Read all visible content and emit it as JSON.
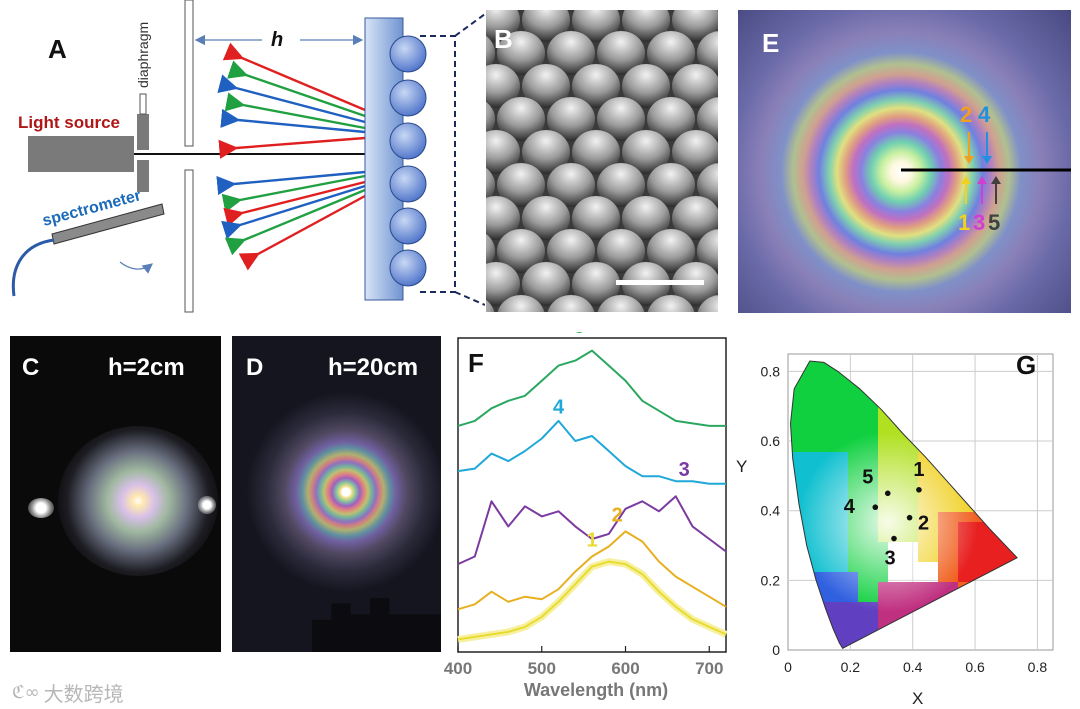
{
  "panel_a": {
    "letter": "A",
    "diaphragm": "diaphragm",
    "light_source": "Light source",
    "spectrometer": "spectrometer",
    "h": "h"
  },
  "panel_b": {
    "letter": "B"
  },
  "panel_c": {
    "letter": "C",
    "caption": "h=2cm"
  },
  "panel_d": {
    "letter": "D",
    "caption": "h=20cm"
  },
  "panel_e": {
    "letter": "E",
    "top_markers": [
      "2",
      "4"
    ],
    "bottom_markers": [
      "1",
      "3",
      "5"
    ],
    "marker_colors": {
      "1": "#f0d020",
      "2": "#f0a020",
      "3": "#d040d0",
      "4": "#2090e0",
      "5": "#404040"
    }
  },
  "panel_f": {
    "letter": "F"
  },
  "panel_g": {
    "letter": "G"
  },
  "watermark": "大数跨境",
  "chart_data": [
    {
      "type": "line",
      "panel": "F",
      "xlabel": "Wavelength (nm)",
      "xlim": [
        400,
        720
      ],
      "xticks": [
        "400",
        "500",
        "600",
        "700"
      ],
      "ylabel": "",
      "yticks": [],
      "series": [
        {
          "name": "1",
          "color": "#e8dc30",
          "x": [
            400,
            420,
            440,
            460,
            480,
            500,
            520,
            540,
            560,
            580,
            600,
            620,
            640,
            660,
            680,
            700,
            720
          ],
          "y": [
            0.05,
            0.06,
            0.07,
            0.08,
            0.1,
            0.14,
            0.2,
            0.27,
            0.34,
            0.36,
            0.35,
            0.31,
            0.24,
            0.18,
            0.13,
            0.1,
            0.07
          ]
        },
        {
          "name": "2",
          "color": "#e8b020",
          "x": [
            400,
            420,
            440,
            460,
            480,
            500,
            520,
            540,
            560,
            580,
            600,
            620,
            640,
            660,
            680,
            700,
            720
          ],
          "y": [
            0.17,
            0.19,
            0.24,
            0.2,
            0.22,
            0.21,
            0.25,
            0.32,
            0.38,
            0.42,
            0.48,
            0.44,
            0.36,
            0.3,
            0.26,
            0.22,
            0.18
          ]
        },
        {
          "name": "3",
          "color": "#7b3aa0",
          "x": [
            400,
            420,
            440,
            460,
            480,
            500,
            520,
            540,
            560,
            580,
            600,
            620,
            640,
            660,
            680,
            700,
            720
          ],
          "y": [
            0.35,
            0.38,
            0.6,
            0.5,
            0.58,
            0.54,
            0.56,
            0.5,
            0.45,
            0.47,
            0.57,
            0.6,
            0.56,
            0.62,
            0.5,
            0.45,
            0.4
          ]
        },
        {
          "name": "4",
          "color": "#20a8d8",
          "x": [
            400,
            420,
            440,
            460,
            480,
            500,
            520,
            540,
            560,
            580,
            600,
            620,
            640,
            660,
            680,
            700,
            720
          ],
          "y": [
            0.72,
            0.73,
            0.79,
            0.76,
            0.8,
            0.85,
            0.92,
            0.84,
            0.86,
            0.8,
            0.74,
            0.7,
            0.7,
            0.68,
            0.68,
            0.67,
            0.67
          ]
        },
        {
          "name": "5",
          "color": "#2aa860",
          "x": [
            400,
            420,
            440,
            460,
            480,
            500,
            520,
            540,
            560,
            580,
            600,
            620,
            640,
            660,
            680,
            700,
            720
          ],
          "y": [
            0.9,
            0.92,
            0.97,
            1.0,
            1.02,
            1.08,
            1.14,
            1.16,
            1.2,
            1.14,
            1.08,
            1.0,
            0.96,
            0.92,
            0.91,
            0.9,
            0.9
          ]
        }
      ]
    },
    {
      "type": "scatter",
      "panel": "G",
      "xlabel": "X",
      "ylabel": "Y",
      "xlim": [
        0,
        0.85
      ],
      "ylim": [
        0,
        0.85
      ],
      "xticks": [
        "0",
        "0.2",
        "0.4",
        "0.6",
        "0.8"
      ],
      "yticks": [
        "0",
        "0.2",
        "0.4",
        "0.6",
        "0.8"
      ],
      "points": [
        {
          "label": "1",
          "x": 0.42,
          "y": 0.46
        },
        {
          "label": "2",
          "x": 0.39,
          "y": 0.38
        },
        {
          "label": "3",
          "x": 0.34,
          "y": 0.32
        },
        {
          "label": "4",
          "x": 0.28,
          "y": 0.41
        },
        {
          "label": "5",
          "x": 0.32,
          "y": 0.45
        }
      ]
    }
  ]
}
